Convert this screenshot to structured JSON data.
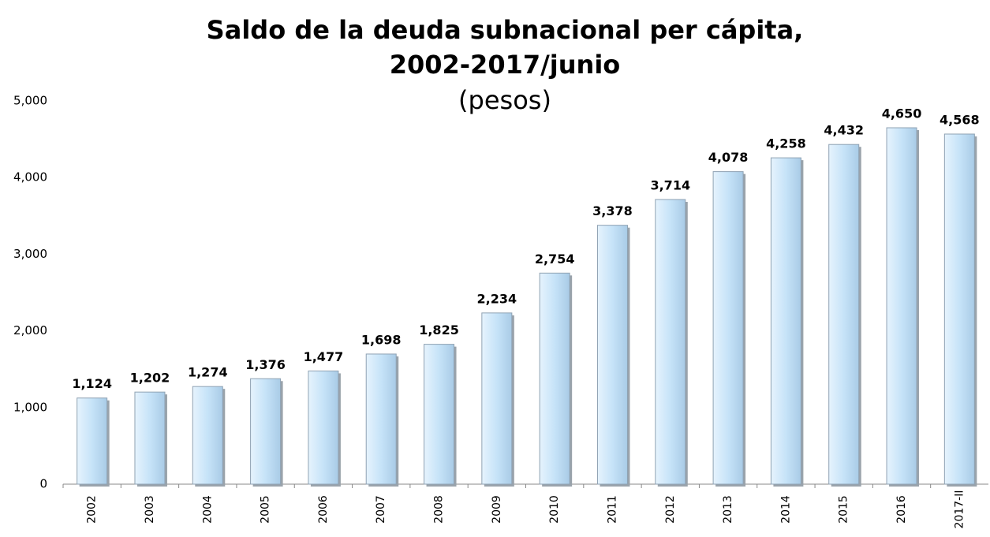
{
  "chart_data": {
    "type": "bar",
    "title": "Saldo de la deuda subnacional per cápita,",
    "title_line2": "2002-2017/junio",
    "subtitle": "(pesos)",
    "categories": [
      "2002",
      "2003",
      "2004",
      "2005",
      "2006",
      "2007",
      "2008",
      "2009",
      "2010",
      "2011",
      "2012",
      "2013",
      "2014",
      "2015",
      "2016",
      "2017-II"
    ],
    "values": [
      1124,
      1202,
      1274,
      1376,
      1477,
      1698,
      1825,
      2234,
      2754,
      3378,
      3714,
      4078,
      4258,
      4432,
      4650,
      4568
    ],
    "value_labels": [
      "1,124",
      "1,202",
      "1,274",
      "1,376",
      "1,477",
      "1,698",
      "1,825",
      "2,234",
      "2,754",
      "3,378",
      "3,714",
      "4,078",
      "4,258",
      "4,432",
      "4,650",
      "4,568"
    ],
    "color": "#c6e3f8",
    "ylim": [
      0,
      5000
    ],
    "yticks": [
      0,
      {
        "value": 1000,
        "label": "1,000"
      },
      {
        "value": 2000,
        "label": "2,000"
      },
      {
        "value": 3000,
        "label": "3,000"
      },
      {
        "value": 4000,
        "label": "4,000"
      },
      {
        "value": 5000,
        "label": "5,000"
      }
    ],
    "grid": false
  }
}
